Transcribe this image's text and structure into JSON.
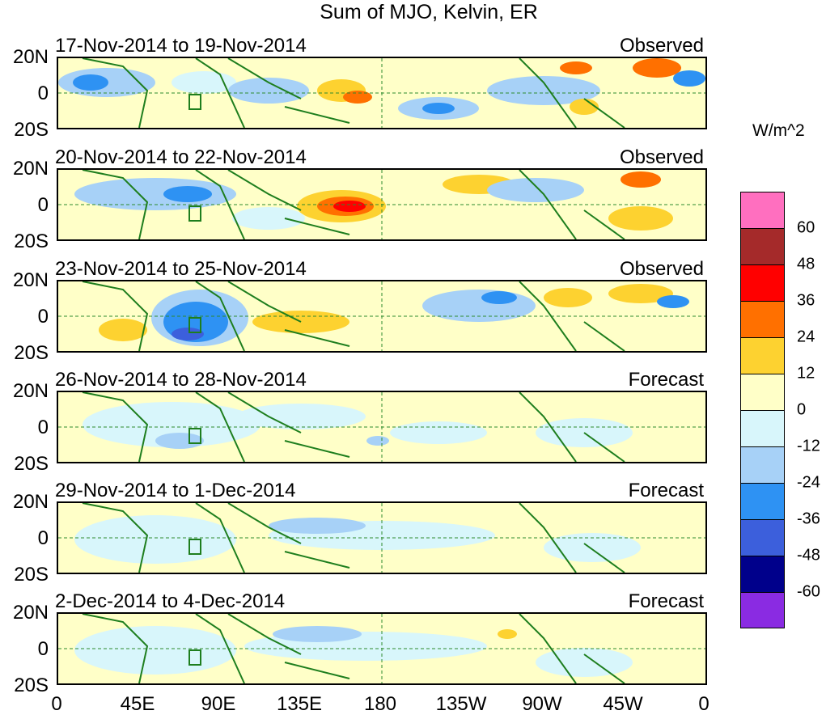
{
  "title": "Sum of MJO, Kelvin, ER",
  "units": "W/m^2",
  "lat_labels": [
    "20N",
    "0",
    "20S"
  ],
  "lon_labels": [
    "0",
    "45E",
    "90E",
    "135E",
    "180",
    "135W",
    "90W",
    "45W",
    "0"
  ],
  "colorbar": {
    "colors": [
      "#ff6fbf",
      "#a52a2a",
      "#ff0000",
      "#ff7000",
      "#fdd230",
      "#ffffc8",
      "#d8f6fb",
      "#a7d1f7",
      "#2e92f3",
      "#3c5fdc",
      "#00008b",
      "#8a2be2"
    ],
    "labels": [
      "60",
      "48",
      "36",
      "24",
      "12",
      "0",
      "-12",
      "-24",
      "-36",
      "-48",
      "-60"
    ]
  },
  "panels": [
    {
      "dates": "17-Nov-2014 to 19-Nov-2014",
      "status": "Observed"
    },
    {
      "dates": "20-Nov-2014 to 22-Nov-2014",
      "status": "Observed"
    },
    {
      "dates": "23-Nov-2014 to 25-Nov-2014",
      "status": "Observed"
    },
    {
      "dates": "26-Nov-2014 to 28-Nov-2014",
      "status": "Forecast"
    },
    {
      "dates": "29-Nov-2014 to 1-Dec-2014",
      "status": "Forecast"
    },
    {
      "dates": "2-Dec-2014 to 4-Dec-2014",
      "status": "Forecast"
    }
  ],
  "map_colors": {
    "land": "#1e7e1e",
    "guide": "#2e8b2e"
  }
}
